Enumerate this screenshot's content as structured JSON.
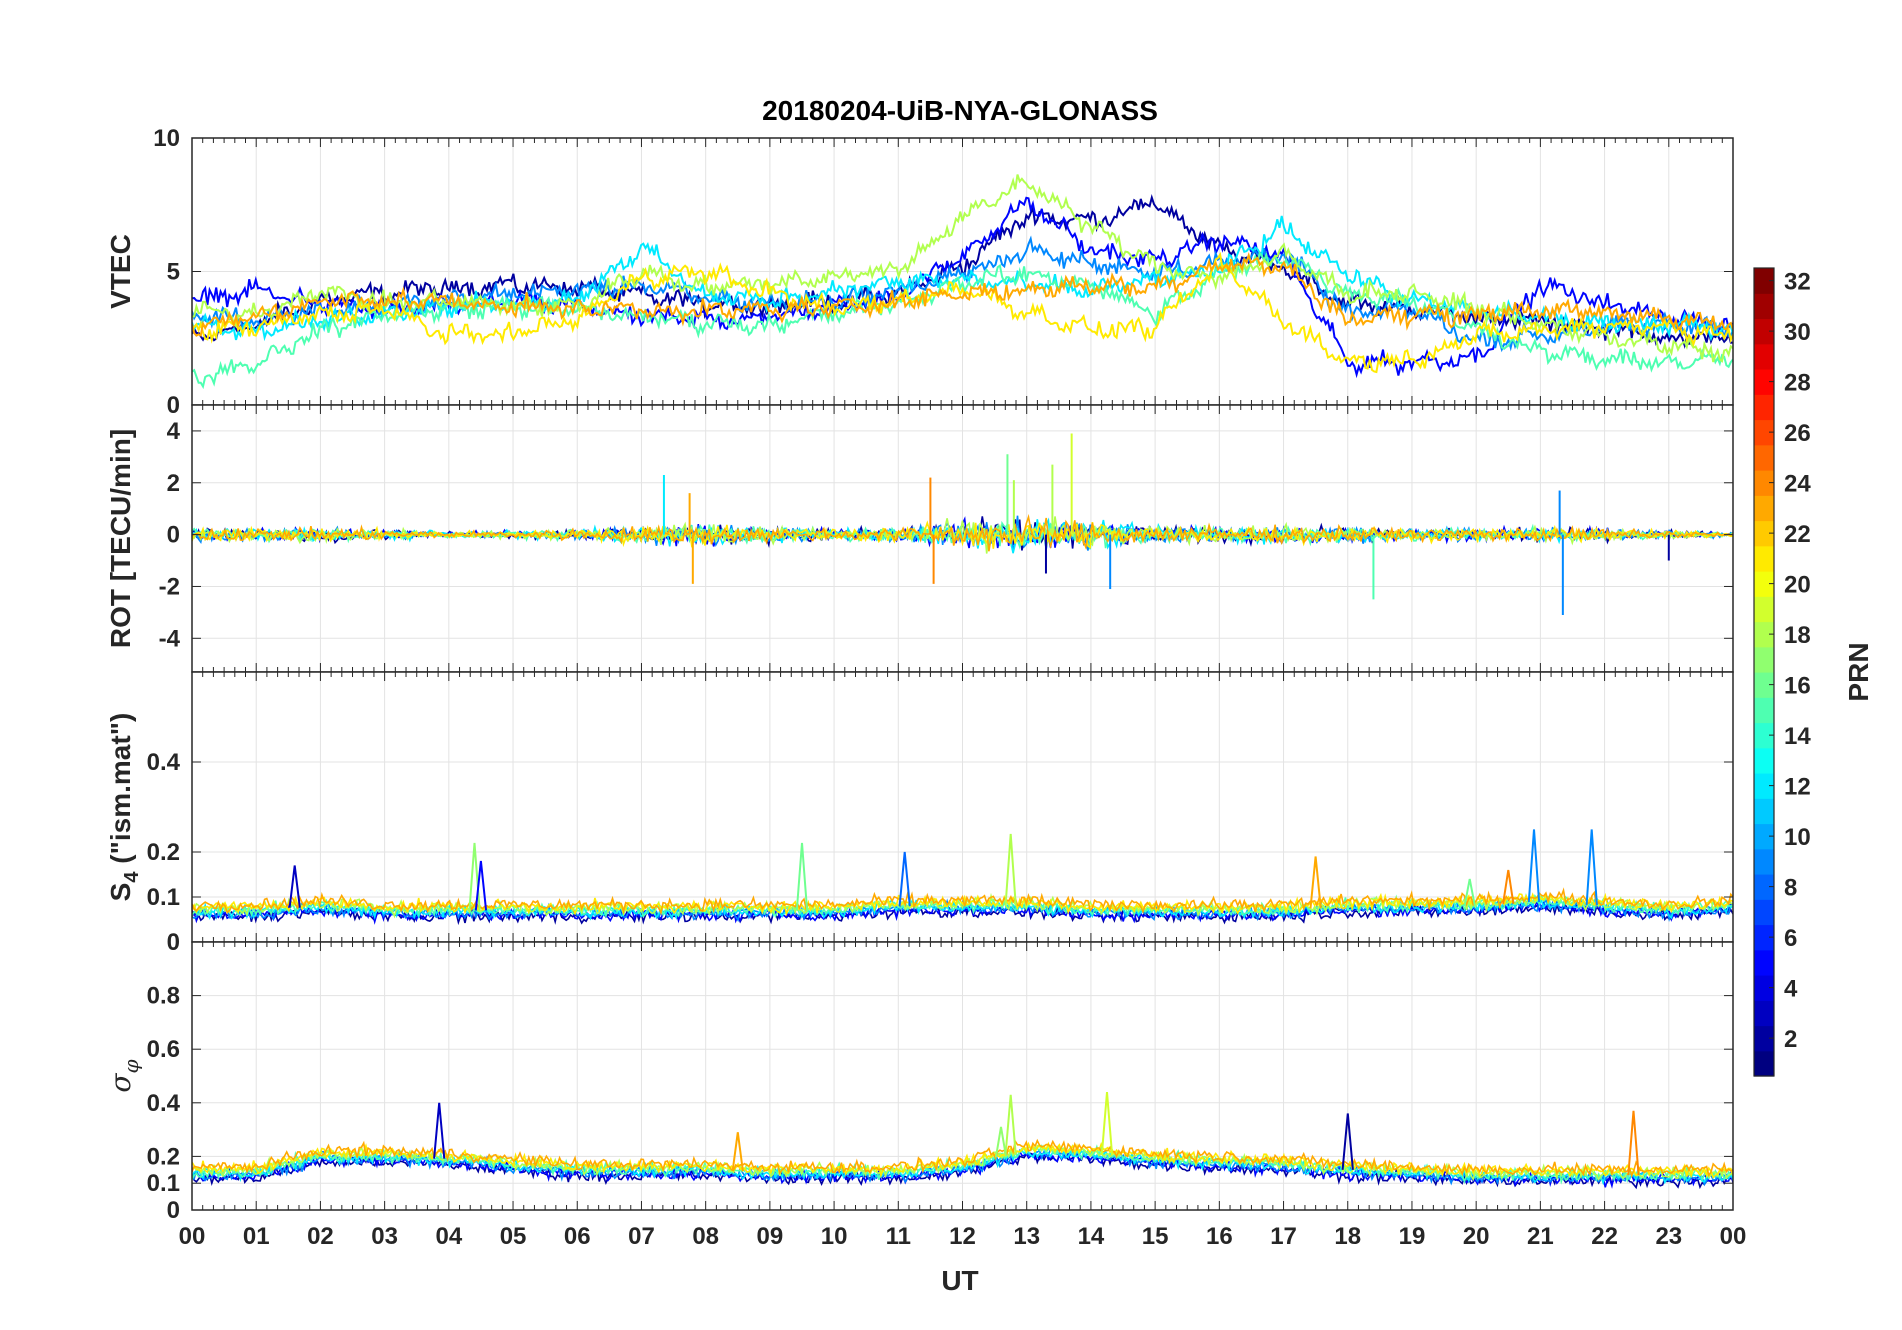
{
  "chart_data": {
    "type": "line",
    "title": "20180204-UiB-NYA-GLONASS",
    "xlabel": "UT",
    "x_tick_labels": [
      "00",
      "01",
      "02",
      "03",
      "04",
      "05",
      "06",
      "07",
      "08",
      "09",
      "10",
      "11",
      "12",
      "13",
      "14",
      "15",
      "16",
      "17",
      "18",
      "19",
      "20",
      "21",
      "22",
      "23",
      "00"
    ],
    "xlim_hours": [
      0,
      24
    ],
    "colormap": "jet",
    "colorbar": {
      "label": "PRN",
      "range": [
        1,
        32
      ],
      "tick_labels": [
        "2",
        "4",
        "6",
        "8",
        "10",
        "12",
        "14",
        "16",
        "18",
        "20",
        "22",
        "24",
        "26",
        "28",
        "30",
        "32"
      ],
      "tick_values": [
        2,
        4,
        6,
        8,
        10,
        12,
        14,
        16,
        18,
        20,
        22,
        24,
        26,
        28,
        30,
        32
      ],
      "placement": "right"
    },
    "grid": true,
    "panels": [
      {
        "id": "vtec",
        "ylabel": "VTEC",
        "ylim": [
          0,
          10
        ],
        "y_ticks": [
          0,
          5,
          10
        ],
        "y_tick_labels": [
          "0",
          "5",
          "10"
        ],
        "series": [
          {
            "prn": 2,
            "x": [
              0,
              1,
              2,
              3,
              4,
              5,
              6,
              7,
              8,
              9,
              10,
              11,
              12,
              13,
              14,
              15,
              16,
              17,
              18,
              19,
              20,
              21,
              22,
              23,
              24
            ],
            "y": [
              2.5,
              3.0,
              3.9,
              4.2,
              4.4,
              4.5,
              4.4,
              4.1,
              3.8,
              3.7,
              3.9,
              4.2,
              5.2,
              7.1,
              6.9,
              7.6,
              5.8,
              5.2,
              3.8,
              3.6,
              3.3,
              3.1,
              2.9,
              2.5,
              2.5
            ]
          },
          {
            "prn": 5,
            "x": [
              0,
              1,
              2,
              3,
              4,
              5,
              6,
              7,
              8,
              9,
              10,
              11,
              12,
              13,
              14,
              15,
              16,
              17,
              18,
              19,
              20,
              21,
              22,
              23,
              24
            ],
            "y": [
              3.9,
              4.3,
              3.8,
              3.6,
              3.7,
              3.9,
              3.7,
              3.3,
              3.2,
              3.3,
              3.7,
              4.1,
              5.6,
              7.6,
              5.8,
              5.4,
              6.2,
              5.6,
              1.6,
              1.6,
              1.8,
              4.5,
              3.8,
              3.3,
              2.9
            ]
          },
          {
            "prn": 9,
            "x": [
              0,
              1,
              2,
              3,
              4,
              5,
              6,
              7,
              8,
              9,
              10,
              11,
              12,
              13,
              14,
              15,
              16,
              17,
              18,
              19,
              20,
              21,
              22,
              23,
              24
            ],
            "y": [
              3.4,
              3.2,
              3.6,
              3.7,
              3.9,
              4.2,
              4.3,
              4.5,
              4.0,
              3.8,
              3.9,
              4.3,
              4.9,
              5.8,
              5.3,
              5.0,
              5.3,
              5.7,
              3.4,
              3.6,
              2.4,
              2.6,
              2.9,
              3.0,
              2.9
            ]
          },
          {
            "prn": 12,
            "x": [
              0,
              1,
              2,
              3,
              4,
              5,
              6,
              7,
              8,
              9,
              10,
              11,
              12,
              13,
              14,
              15,
              16,
              17,
              18,
              19,
              20,
              21,
              22,
              23,
              24
            ],
            "y": [
              3.0,
              2.7,
              3.2,
              3.5,
              3.7,
              3.8,
              4.0,
              5.9,
              4.1,
              3.9,
              4.3,
              4.6,
              4.7,
              4.5,
              4.3,
              4.7,
              5.0,
              6.7,
              4.9,
              3.9,
              3.5,
              3.3,
              3.0,
              3.1,
              2.8
            ]
          },
          {
            "prn": 15,
            "x": [
              0,
              1,
              2,
              3,
              4,
              5,
              6,
              7,
              8,
              9,
              10,
              11,
              12,
              13,
              14,
              15,
              16,
              17,
              18,
              19,
              20,
              21,
              22,
              23,
              24
            ],
            "y": [
              1.0,
              1.6,
              2.8,
              3.4,
              3.6,
              3.7,
              3.6,
              3.3,
              3.1,
              3.0,
              3.4,
              3.8,
              4.6,
              4.9,
              4.5,
              3.4,
              4.9,
              5.6,
              4.2,
              3.9,
              2.9,
              2.0,
              1.7,
              1.6,
              1.7
            ]
          },
          {
            "prn": 18,
            "x": [
              0,
              1,
              2,
              3,
              4,
              5,
              6,
              7,
              8,
              9,
              10,
              11,
              12,
              13,
              14,
              15,
              16,
              17,
              18,
              19,
              20,
              21,
              22,
              23,
              24
            ],
            "y": [
              3.5,
              3.4,
              4.3,
              3.8,
              3.9,
              3.7,
              3.7,
              5.0,
              4.4,
              4.6,
              4.8,
              5.1,
              7.0,
              8.4,
              6.7,
              5.2,
              4.8,
              5.6,
              4.2,
              4.2,
              3.6,
              3.0,
              2.6,
              2.2,
              1.9
            ]
          },
          {
            "prn": 21,
            "x": [
              0,
              1,
              2,
              3,
              4,
              5,
              6,
              7,
              8,
              9,
              10,
              11,
              12,
              13,
              14,
              15,
              16,
              17,
              18,
              19,
              20,
              21,
              22,
              23,
              24
            ],
            "y": [
              2.8,
              2.9,
              3.4,
              3.6,
              2.6,
              2.7,
              3.2,
              4.8,
              5.0,
              4.2,
              3.6,
              3.9,
              4.4,
              3.5,
              2.8,
              2.9,
              5.3,
              3.2,
              1.6,
              1.7,
              2.6,
              2.8,
              3.0,
              2.9,
              2.6
            ]
          },
          {
            "prn": 23,
            "x": [
              0,
              1,
              2,
              3,
              4,
              5,
              6,
              7,
              8,
              9,
              10,
              11,
              12,
              13,
              14,
              15,
              16,
              17,
              18,
              19,
              20,
              21,
              22,
              23,
              24
            ],
            "y": [
              2.9,
              3.3,
              3.9,
              3.9,
              3.9,
              3.7,
              3.6,
              3.6,
              3.5,
              3.6,
              3.6,
              3.9,
              4.2,
              4.3,
              4.5,
              4.4,
              5.3,
              5.2,
              3.2,
              3.4,
              3.4,
              3.6,
              3.4,
              3.3,
              3.0
            ]
          }
        ]
      },
      {
        "id": "rot",
        "ylabel": "ROT [TECU/min]",
        "ylim": [
          -5.3,
          5.0
        ],
        "y_ticks": [
          -4,
          -2,
          0,
          2,
          4
        ],
        "y_tick_labels": [
          "-4",
          "-2",
          "0",
          "2",
          "4"
        ],
        "noise_profile": {
          "x": [
            0,
            1,
            2,
            3,
            4,
            5,
            6,
            7,
            8,
            9,
            10,
            11,
            12,
            13,
            14,
            15,
            16,
            17,
            18,
            19,
            20,
            21,
            22,
            23,
            24
          ],
          "amplitude": [
            0.35,
            0.3,
            0.35,
            0.25,
            0.15,
            0.2,
            0.3,
            0.45,
            0.5,
            0.4,
            0.3,
            0.35,
            0.7,
            0.8,
            0.7,
            0.45,
            0.45,
            0.4,
            0.4,
            0.3,
            0.3,
            0.35,
            0.3,
            0.2,
            0.1
          ]
        },
        "spikes": [
          {
            "x": 7.35,
            "y": 2.3,
            "prn": 12
          },
          {
            "x": 7.8,
            "y": -1.9,
            "prn": 23
          },
          {
            "x": 7.75,
            "y": 1.6,
            "prn": 23
          },
          {
            "x": 11.5,
            "y": 2.2,
            "prn": 24
          },
          {
            "x": 11.55,
            "y": -1.9,
            "prn": 24
          },
          {
            "x": 12.7,
            "y": 3.1,
            "prn": 16
          },
          {
            "x": 12.8,
            "y": 2.1,
            "prn": 18
          },
          {
            "x": 13.4,
            "y": 2.7,
            "prn": 18
          },
          {
            "x": 13.7,
            "y": 3.9,
            "prn": 19
          },
          {
            "x": 14.3,
            "y": -2.1,
            "prn": 9
          },
          {
            "x": 13.3,
            "y": -1.5,
            "prn": 2
          },
          {
            "x": 18.4,
            "y": -2.5,
            "prn": 15
          },
          {
            "x": 21.3,
            "y": 1.7,
            "prn": 9
          },
          {
            "x": 21.35,
            "y": -3.1,
            "prn": 9
          },
          {
            "x": 23.0,
            "y": -1.0,
            "prn": 2
          }
        ]
      },
      {
        "id": "s4",
        "ylabel_text": "S",
        "ylabel_subscript": "4",
        "ylabel_suffix": " (\"ism.mat\")",
        "ylim": [
          0,
          0.6
        ],
        "y_ticks": [
          0,
          0.1,
          0.2,
          0.4
        ],
        "y_tick_labels": [
          "0",
          "0.1",
          "0.2",
          "0.4"
        ],
        "baseline_profile": {
          "x": [
            0,
            1,
            2,
            3,
            4,
            5,
            6,
            7,
            8,
            9,
            10,
            11,
            12,
            13,
            14,
            15,
            16,
            17,
            18,
            19,
            20,
            21,
            22,
            23,
            24
          ],
          "level": [
            0.07,
            0.07,
            0.08,
            0.07,
            0.07,
            0.07,
            0.07,
            0.07,
            0.07,
            0.07,
            0.07,
            0.08,
            0.08,
            0.08,
            0.07,
            0.07,
            0.07,
            0.07,
            0.08,
            0.08,
            0.08,
            0.09,
            0.08,
            0.07,
            0.08
          ]
        },
        "peaks": [
          {
            "x": 1.6,
            "y": 0.17,
            "prn": 3
          },
          {
            "x": 4.4,
            "y": 0.22,
            "prn": 17
          },
          {
            "x": 4.5,
            "y": 0.18,
            "prn": 5
          },
          {
            "x": 9.5,
            "y": 0.22,
            "prn": 16
          },
          {
            "x": 11.1,
            "y": 0.2,
            "prn": 8
          },
          {
            "x": 12.75,
            "y": 0.24,
            "prn": 18
          },
          {
            "x": 17.5,
            "y": 0.19,
            "prn": 23
          },
          {
            "x": 20.9,
            "y": 0.25,
            "prn": 9
          },
          {
            "x": 21.8,
            "y": 0.25,
            "prn": 9
          },
          {
            "x": 20.5,
            "y": 0.16,
            "prn": 24
          },
          {
            "x": 19.9,
            "y": 0.14,
            "prn": 16
          }
        ]
      },
      {
        "id": "sigma_phi",
        "ylabel_greek": "σ",
        "ylabel_subscript_greek": "φ",
        "ylim": [
          0,
          1
        ],
        "y_ticks": [
          0,
          0.1,
          0.2,
          0.4,
          0.6,
          0.8
        ],
        "y_tick_labels": [
          "0",
          "0.1",
          "0.2",
          "0.4",
          "0.6",
          "0.8"
        ],
        "baseline_profile": {
          "x": [
            0,
            1,
            2,
            3,
            4,
            5,
            6,
            7,
            8,
            9,
            10,
            11,
            12,
            13,
            14,
            15,
            16,
            17,
            18,
            19,
            20,
            21,
            22,
            23,
            24
          ],
          "level": [
            0.14,
            0.14,
            0.2,
            0.2,
            0.19,
            0.17,
            0.15,
            0.15,
            0.15,
            0.14,
            0.14,
            0.14,
            0.16,
            0.22,
            0.21,
            0.19,
            0.18,
            0.17,
            0.15,
            0.14,
            0.13,
            0.13,
            0.13,
            0.13,
            0.13
          ]
        },
        "peaks": [
          {
            "x": 3.85,
            "y": 0.4,
            "prn": 3
          },
          {
            "x": 12.75,
            "y": 0.43,
            "prn": 18
          },
          {
            "x": 14.25,
            "y": 0.44,
            "prn": 19
          },
          {
            "x": 18.0,
            "y": 0.36,
            "prn": 2
          },
          {
            "x": 22.45,
            "y": 0.37,
            "prn": 24
          },
          {
            "x": 8.5,
            "y": 0.29,
            "prn": 23
          },
          {
            "x": 12.6,
            "y": 0.31,
            "prn": 17
          }
        ]
      }
    ]
  }
}
